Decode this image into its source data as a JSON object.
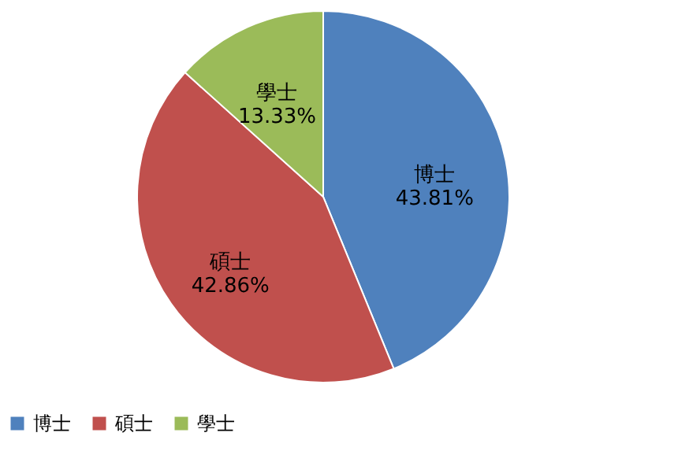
{
  "chart_data": {
    "type": "pie",
    "categories": [
      "博士",
      "碩士",
      "學士"
    ],
    "values": [
      43.81,
      42.86,
      13.33
    ],
    "colors": [
      "#4f81bd",
      "#c0504d",
      "#9bbb59"
    ],
    "value_labels": [
      "43.81%",
      "42.86%",
      "13.33%"
    ],
    "legend": "bottom"
  }
}
